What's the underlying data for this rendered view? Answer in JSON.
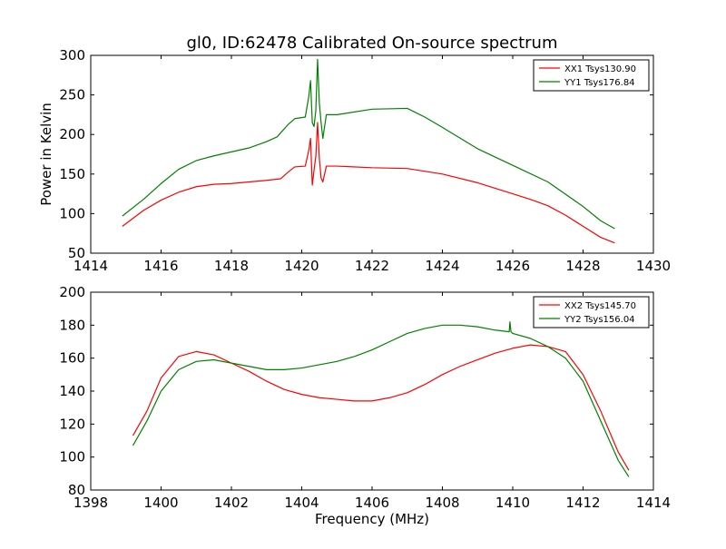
{
  "figure": {
    "title": "gl0, ID:62478 Calibrated On-source spectrum"
  },
  "chart_data": [
    {
      "type": "line",
      "title": "gl0, ID:62478 Calibrated On-source spectrum",
      "xlabel": "",
      "ylabel": "Power in Kelvin",
      "xlim": [
        1414,
        1430
      ],
      "ylim": [
        50,
        300
      ],
      "xticks": [
        1414,
        1416,
        1418,
        1420,
        1422,
        1424,
        1426,
        1428,
        1430
      ],
      "yticks": [
        50,
        100,
        150,
        200,
        250,
        300
      ],
      "grid": false,
      "legend_position": "top-right",
      "series": [
        {
          "name": "XX1 Tsys130.90",
          "color": "#ff0000",
          "points": [
            [
              1414.9,
              84
            ],
            [
              1415.5,
              104
            ],
            [
              1416,
              117
            ],
            [
              1416.5,
              127
            ],
            [
              1417,
              134
            ],
            [
              1417.5,
              137
            ],
            [
              1418,
              138
            ],
            [
              1418.5,
              140
            ],
            [
              1419,
              142
            ],
            [
              1419.4,
              144
            ],
            [
              1419.6,
              152
            ],
            [
              1419.8,
              159
            ],
            [
              1420.1,
              160
            ],
            [
              1420.2,
              180
            ],
            [
              1420.25,
              195
            ],
            [
              1420.3,
              136
            ],
            [
              1420.35,
              155
            ],
            [
              1420.4,
              172
            ],
            [
              1420.45,
              215
            ],
            [
              1420.5,
              170
            ],
            [
              1420.55,
              145
            ],
            [
              1420.6,
              140
            ],
            [
              1420.7,
              160
            ],
            [
              1421,
              160
            ],
            [
              1422,
              158
            ],
            [
              1423,
              157
            ],
            [
              1424,
              150
            ],
            [
              1425,
              139
            ],
            [
              1426,
              125
            ],
            [
              1426.5,
              118
            ],
            [
              1427,
              110
            ],
            [
              1427.5,
              98
            ],
            [
              1428,
              84
            ],
            [
              1428.5,
              70
            ],
            [
              1428.9,
              63
            ]
          ]
        },
        {
          "name": "YY1 Tsys176.84",
          "color": "#008000",
          "points": [
            [
              1414.9,
              97
            ],
            [
              1415.5,
              118
            ],
            [
              1416,
              138
            ],
            [
              1416.5,
              156
            ],
            [
              1417,
              167
            ],
            [
              1417.5,
              173
            ],
            [
              1418,
              178
            ],
            [
              1418.5,
              183
            ],
            [
              1419,
              191
            ],
            [
              1419.3,
              197
            ],
            [
              1419.6,
              212
            ],
            [
              1419.8,
              220
            ],
            [
              1420.1,
              222
            ],
            [
              1420.2,
              248
            ],
            [
              1420.25,
              268
            ],
            [
              1420.3,
              215
            ],
            [
              1420.35,
              210
            ],
            [
              1420.4,
              230
            ],
            [
              1420.45,
              295
            ],
            [
              1420.5,
              240
            ],
            [
              1420.55,
              215
            ],
            [
              1420.6,
              195
            ],
            [
              1420.7,
              225
            ],
            [
              1421,
              225
            ],
            [
              1422,
              232
            ],
            [
              1423,
              233
            ],
            [
              1423.5,
              222
            ],
            [
              1424,
              209
            ],
            [
              1425,
              182
            ],
            [
              1426,
              161
            ],
            [
              1427,
              140
            ],
            [
              1428,
              109
            ],
            [
              1428.5,
              91
            ],
            [
              1428.9,
              81
            ]
          ]
        }
      ]
    },
    {
      "type": "line",
      "title": "",
      "xlabel": "Frequency (MHz)",
      "ylabel": "",
      "xlim": [
        1398,
        1414
      ],
      "ylim": [
        80,
        200
      ],
      "xticks": [
        1398,
        1400,
        1402,
        1404,
        1406,
        1408,
        1410,
        1412,
        1414
      ],
      "yticks": [
        80,
        100,
        120,
        140,
        160,
        180,
        200
      ],
      "grid": false,
      "legend_position": "top-right",
      "series": [
        {
          "name": "XX2 Tsys145.70",
          "color": "#ff0000",
          "points": [
            [
              1399.2,
              113
            ],
            [
              1399.6,
              128
            ],
            [
              1400,
              148
            ],
            [
              1400.5,
              161
            ],
            [
              1401,
              164
            ],
            [
              1401.5,
              162
            ],
            [
              1402,
              157
            ],
            [
              1402.5,
              152
            ],
            [
              1403,
              146
            ],
            [
              1403.5,
              141
            ],
            [
              1404,
              138
            ],
            [
              1404.5,
              136
            ],
            [
              1405,
              135
            ],
            [
              1405.5,
              134
            ],
            [
              1406,
              134
            ],
            [
              1406.5,
              136
            ],
            [
              1407,
              139
            ],
            [
              1407.5,
              144
            ],
            [
              1408,
              150
            ],
            [
              1408.5,
              155
            ],
            [
              1409,
              159
            ],
            [
              1409.5,
              163
            ],
            [
              1410,
              166
            ],
            [
              1410.5,
              168
            ],
            [
              1411,
              167
            ],
            [
              1411.5,
              164
            ],
            [
              1412,
              150
            ],
            [
              1412.5,
              128
            ],
            [
              1413,
              103
            ],
            [
              1413.3,
              92
            ]
          ]
        },
        {
          "name": "YY2 Tsys156.04",
          "color": "#008000",
          "points": [
            [
              1399.2,
              107
            ],
            [
              1399.6,
              122
            ],
            [
              1400,
              140
            ],
            [
              1400.5,
              153
            ],
            [
              1401,
              158
            ],
            [
              1401.5,
              159
            ],
            [
              1402,
              157
            ],
            [
              1402.5,
              155
            ],
            [
              1403,
              153
            ],
            [
              1403.5,
              153
            ],
            [
              1404,
              154
            ],
            [
              1404.5,
              156
            ],
            [
              1405,
              158
            ],
            [
              1405.5,
              161
            ],
            [
              1406,
              165
            ],
            [
              1406.5,
              170
            ],
            [
              1407,
              175
            ],
            [
              1407.5,
              178
            ],
            [
              1408,
              180
            ],
            [
              1408.5,
              180
            ],
            [
              1409,
              179
            ],
            [
              1409.5,
              177
            ],
            [
              1409.9,
              176
            ],
            [
              1409.92,
              182
            ],
            [
              1409.95,
              176
            ],
            [
              1410,
              175
            ],
            [
              1410.5,
              172
            ],
            [
              1411,
              167
            ],
            [
              1411.5,
              160
            ],
            [
              1412,
              146
            ],
            [
              1412.5,
              122
            ],
            [
              1413,
              98
            ],
            [
              1413.3,
              88
            ]
          ]
        }
      ]
    }
  ]
}
